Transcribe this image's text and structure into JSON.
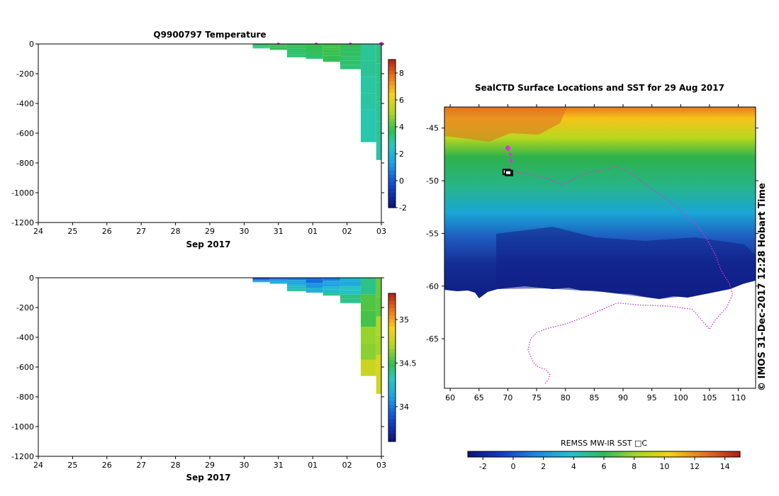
{
  "chart_data": [
    {
      "type": "heatmap",
      "title": "Q9900797  Temperature",
      "xlabel": "Sep 2017",
      "x_ticks": [
        "24",
        "25",
        "26",
        "27",
        "28",
        "29",
        "30",
        "31",
        "01",
        "02",
        "03"
      ],
      "y_ticks": [
        "0",
        "-200",
        "-400",
        "-600",
        "-800",
        "-1000",
        "-1200"
      ],
      "ylim": [
        -1200,
        0
      ],
      "x_range_days": [
        0,
        10
      ],
      "colorbar": {
        "range": [
          -2,
          9
        ],
        "ticks": [
          "8",
          "6",
          "4",
          "2",
          "0",
          "-2"
        ]
      },
      "profiles": [
        {
          "day": 6.5,
          "max_depth": 30,
          "value": 3.5
        },
        {
          "day": 7.0,
          "max_depth": 40,
          "value": 3.8
        },
        {
          "day": 7.5,
          "max_depth": 90,
          "value": 3.6
        },
        {
          "day": 8.1,
          "max_depth": 100,
          "value": 3.7
        },
        {
          "day": 8.5,
          "max_depth": 120,
          "value": 3.9
        },
        {
          "day": 9.1,
          "max_depth": 170,
          "value": 3.6
        },
        {
          "day": 9.7,
          "max_depth": 660,
          "value": 3.0
        },
        {
          "day": 10.0,
          "max_depth": 780,
          "value": 3.2
        }
      ]
    },
    {
      "type": "heatmap",
      "title": "",
      "xlabel": "Sep 2017",
      "x_ticks": [
        "24",
        "25",
        "26",
        "27",
        "28",
        "29",
        "30",
        "31",
        "01",
        "02",
        "03"
      ],
      "y_ticks": [
        "0",
        "-200",
        "-400",
        "-600",
        "-800",
        "-1000",
        "-1200"
      ],
      "ylim": [
        -1200,
        0
      ],
      "colorbar": {
        "range": [
          33.6,
          35.3
        ],
        "ticks": [
          "35",
          "34.5",
          "34"
        ]
      },
      "profiles": [
        {
          "day": 6.5,
          "max_depth": 30,
          "value": 33.8
        },
        {
          "day": 7.0,
          "max_depth": 40,
          "value": 33.9
        },
        {
          "day": 7.5,
          "max_depth": 90,
          "value": 34.0
        },
        {
          "day": 8.1,
          "max_depth": 100,
          "value": 33.9
        },
        {
          "day": 8.5,
          "max_depth": 120,
          "value": 34.0
        },
        {
          "day": 9.1,
          "max_depth": 170,
          "value": 34.1
        },
        {
          "day": 9.7,
          "max_depth": 660,
          "value": 34.4
        },
        {
          "day": 10.0,
          "max_depth": 780,
          "value": 34.5
        }
      ]
    },
    {
      "type": "heatmap",
      "title": "SealCTD Surface Locations and SST for 29 Aug 2017",
      "x_ticks": [
        "60",
        "65",
        "70",
        "75",
        "80",
        "85",
        "90",
        "95",
        "100",
        "105",
        "110"
      ],
      "y_ticks": [
        "-45",
        "-50",
        "-55",
        "-60",
        "-65"
      ],
      "xlim": [
        59,
        113
      ],
      "ylim": [
        -69.7,
        -43
      ],
      "colorbar": {
        "label": "REMSS MW-IR SST □C",
        "range": [
          -3,
          15
        ],
        "ticks": [
          "-2",
          "0",
          "2",
          "4",
          "6",
          "8",
          "10",
          "12",
          "14"
        ]
      },
      "track": [
        [
          70.0,
          -46.9
        ],
        [
          70.4,
          -47.7
        ],
        [
          70.5,
          -48.3
        ],
        [
          70.0,
          -49.0
        ],
        [
          71.0,
          -49.1
        ],
        [
          74.0,
          -49.4
        ],
        [
          77.0,
          -49.8
        ],
        [
          79.5,
          -50.4
        ],
        [
          81.5,
          -49.8
        ],
        [
          84.0,
          -49.2
        ],
        [
          86.5,
          -49.0
        ],
        [
          89.0,
          -48.6
        ],
        [
          91.5,
          -49.3
        ],
        [
          94.0,
          -50.4
        ],
        [
          97.0,
          -51.5
        ],
        [
          99.5,
          -52.6
        ],
        [
          101.5,
          -53.6
        ],
        [
          103.0,
          -54.3
        ],
        [
          104.5,
          -55.5
        ],
        [
          106.0,
          -57.0
        ],
        [
          107.0,
          -58.5
        ],
        [
          108.5,
          -59.8
        ],
        [
          109.0,
          -60.8
        ],
        [
          108.0,
          -62.0
        ],
        [
          106.0,
          -63.2
        ],
        [
          105.0,
          -64.1
        ],
        [
          102.0,
          -62.2
        ],
        [
          98.0,
          -61.9
        ],
        [
          93.0,
          -61.8
        ],
        [
          89.0,
          -61.6
        ],
        [
          86.0,
          -62.3
        ],
        [
          83.0,
          -63.0
        ],
        [
          80.0,
          -63.6
        ],
        [
          77.0,
          -64.0
        ],
        [
          75.0,
          -64.4
        ],
        [
          74.0,
          -65.0
        ],
        [
          73.5,
          -66.0
        ],
        [
          74.2,
          -67.0
        ],
        [
          75.0,
          -67.6
        ],
        [
          76.5,
          -67.9
        ],
        [
          77.3,
          -68.4
        ],
        [
          77.0,
          -68.9
        ],
        [
          76.4,
          -69.3
        ]
      ],
      "markers": [
        [
          70.0,
          -46.9
        ],
        [
          70.5,
          -47.5
        ],
        [
          70.6,
          -48.1
        ]
      ],
      "colored_points": [
        [
          69.8,
          -49.2
        ],
        [
          70.2,
          -49.3
        ]
      ],
      "copyright": "©  IMOS 31-Dec-2017 12:28 Hobart Time"
    }
  ]
}
